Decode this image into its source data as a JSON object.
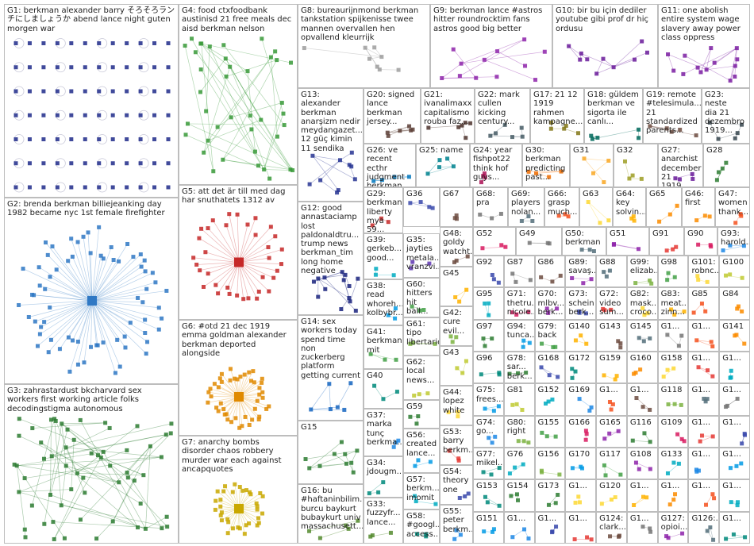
{
  "groups": [
    {
      "id": "G1",
      "label": "G1: berkman alexander barry そろそろラン\nチにしましょうか abend lance night guten\nmorgen war",
      "color": "#1f2a8a"
    },
    {
      "id": "G2",
      "label": "G2: brenda berkman billiejeanking day\n1982 became nyc 1st female firefighter",
      "color": "#2f78c4"
    },
    {
      "id": "G3",
      "label": "G3: zahrastardust bkcharvard sex\nworkers first working article folks\ndecodingstigma autonomous",
      "color": "#2e7d32"
    },
    {
      "id": "G4",
      "label": "G4: food ctxfoodbank\naustinisd 21 free meals dec\naisd berkman nelson",
      "color": "#3a9a3a"
    },
    {
      "id": "G5",
      "label": "G5: att det är till med dag\nhar snuthatets 1312 av",
      "color": "#c62828"
    },
    {
      "id": "G6",
      "label": "G6: #otd 21 dec 1919\nemma goldman alexander\nberkman deported\nalongside",
      "color": "#e08a00"
    },
    {
      "id": "G7",
      "label": "G7: anarchy bombs\ndisorder chaos robbery\nmurder war each against\nancapquotes",
      "color": "#c9a800"
    },
    {
      "id": "G8",
      "label": "G8: bureaurijnmond berkman\ntankstation spijkenisse twee\nmannen overvallen hen\nopvallend kleurrijk",
      "color": "#9e9e9e"
    },
    {
      "id": "G9",
      "label": "G9: berkman lance #astros\nhitter roundrocktim fans\nastros good big better",
      "color": "#8e24aa"
    },
    {
      "id": "G10",
      "label": "G10: bir bu için dediler\nyoutube gibi prof dr hiç\nordusu",
      "color": "#6a1b9a"
    },
    {
      "id": "G11",
      "label": "G11: one abolish\nentire system wage\nslavery away power\nclass oppress",
      "color": "#7b1fa2"
    },
    {
      "id": "G12",
      "label": "G12: good\nannastaciamp\nlost\npaldonaldtru...\ntrump news\nberkman_tim\nlong home\nnegative",
      "color": "#1a237e"
    },
    {
      "id": "G13",
      "label": "G13: alexander\nberkman\nanarşizm nedir\nmeydangazet...\n12 güç kimin\n11 sendika",
      "color": "#283593"
    },
    {
      "id": "G14",
      "label": "G14: sex\nworkers today\nspend time non\nzuckerberg\nplatform\ngetting current",
      "color": "#1565c0"
    },
    {
      "id": "G15",
      "label": "G15",
      "color": "#2e7d32"
    },
    {
      "id": "G16",
      "label": "G16: bu\n#haftaninbilim...\nburcu baykurt\nbubaykurt univ\nmassachusett...",
      "color": "#558b2f"
    },
    {
      "id": "G17",
      "label": "G17: 21 12\n1919\nrahmen\nkampagne...",
      "color": "#827717"
    },
    {
      "id": "G18",
      "label": "G18: güldem\nberkman ve\nsigorta ile\ncanlı...",
      "color": "#00695c"
    },
    {
      "id": "G19",
      "label": "G19: remote\n#telesimula...\n21\nstandardized\nparents...",
      "color": "#6d4c41"
    },
    {
      "id": "G20",
      "label": "G20: signed\nlance\nberkman\njersey...",
      "color": "#5d4037"
    },
    {
      "id": "G21",
      "label": "G21:\nivanalimaxx\ncapitalismo\nrouba faz...",
      "color": "#4e342e"
    },
    {
      "id": "G22",
      "label": "G22: mark\ncullen\nkicking\ncentury...",
      "color": "#455a64"
    },
    {
      "id": "G23",
      "label": "G23: neste\ndia 21\ndezembro\n1919...",
      "color": "#37474f"
    },
    {
      "id": "G24",
      "label": "G24: year\nfishpot22\nthink hof\nguys...",
      "color": "#ad1457"
    },
    {
      "id": "G25",
      "label": "G25: name",
      "color": "#00838f"
    },
    {
      "id": "G26",
      "label": "G26: ve\nrecent ecthr\njudgment\nberkman...",
      "color": "#0277bd"
    },
    {
      "id": "G27",
      "label": "G27:\nanarchist\ndecember\n21 1919...",
      "color": "#6a1b9a"
    },
    {
      "id": "G28",
      "label": "G28",
      "color": "#2e7d32"
    },
    {
      "id": "G29",
      "label": "G29:\nberkman\nliberty\nmya 59...",
      "color": "#c62828"
    },
    {
      "id": "G30",
      "label": "G30:\nberkman\npredicting\npast...",
      "color": "#ef6c00"
    },
    {
      "id": "G31",
      "label": "G31",
      "color": "#f9a825"
    },
    {
      "id": "G32",
      "label": "G32",
      "color": "#9e9d24"
    },
    {
      "id": "G33",
      "label": "G33:\nfuzzyfr...\nlance...",
      "color": "#558b2f"
    },
    {
      "id": "G34",
      "label": "G34:\njdougm...",
      "color": "#00897b"
    },
    {
      "id": "G35",
      "label": "G35:\njayties\nmetala...\nvranzvi...",
      "color": "#5e35b1"
    },
    {
      "id": "G36",
      "label": "G36",
      "color": "#3949ab"
    },
    {
      "id": "G37",
      "label": "G37:\nmarka\ntunç\nberkma...",
      "color": "#1e88e5"
    },
    {
      "id": "G38",
      "label": "G38:\nread\nwhoreh...\nkolbybr...",
      "color": "#039be5"
    },
    {
      "id": "G39",
      "label": "G39:\ngerkeb...\ngood...",
      "color": "#00acc1"
    },
    {
      "id": "G40",
      "label": "G40",
      "color": "#00897b"
    },
    {
      "id": "G41",
      "label": "G41:\nberkman\nmit",
      "color": "#43a047"
    },
    {
      "id": "G42",
      "label": "G42:\ncure\nevil...",
      "color": "#7cb342"
    },
    {
      "id": "G43",
      "label": "G43",
      "color": "#c0ca33"
    },
    {
      "id": "G44",
      "label": "G44:\nlopez\nwhite",
      "color": "#fdd835"
    },
    {
      "id": "G45",
      "label": "G45",
      "color": "#ffb300"
    },
    {
      "id": "G46",
      "label": "G46:\nfirst",
      "color": "#fb8c00"
    },
    {
      "id": "G47",
      "label": "G47:\nwomen\nthank...",
      "color": "#f4511e"
    },
    {
      "id": "G48",
      "label": "G48:\ngoldy\nwatcht...",
      "color": "#6d4c41"
    },
    {
      "id": "G49",
      "label": "G49",
      "color": "#757575"
    },
    {
      "id": "G50",
      "label": "G50:\nberkman",
      "color": "#546e7a"
    },
    {
      "id": "G51",
      "label": "G51",
      "color": "#8e24aa"
    },
    {
      "id": "G52",
      "label": "G52",
      "color": "#d81b60"
    },
    {
      "id": "G53",
      "label": "G53:\nbarry\nberkm...",
      "color": "#e53935"
    },
    {
      "id": "G54",
      "label": "G54:\ntheory\none",
      "color": "#3949ab"
    },
    {
      "id": "G55",
      "label": "G55:\npeter\nberkm...",
      "color": "#1e88e5"
    },
    {
      "id": "G56",
      "label": "G56:\ncreated\nlance...",
      "color": "#039be5"
    },
    {
      "id": "G57",
      "label": "G57:\nberkm...\nimomit",
      "color": "#00acc1"
    },
    {
      "id": "G58",
      "label": "G58:\n#googl...\naccess...",
      "color": "#00897b"
    },
    {
      "id": "G59",
      "label": "G59",
      "color": "#2e7d32"
    },
    {
      "id": "G60",
      "label": "G60:\nhitters\nhit ball...",
      "color": "#43a047"
    },
    {
      "id": "G61",
      "label": "G61:\ntipo\nlibertario",
      "color": "#7cb342"
    },
    {
      "id": "G62",
      "label": "G62:\nlocal\nnews...",
      "color": "#c0ca33"
    },
    {
      "id": "G63",
      "label": "G63",
      "color": "#fdd835"
    },
    {
      "id": "G64",
      "label": "G64:\nkey\nsolvin...",
      "color": "#ffb300"
    },
    {
      "id": "G65",
      "label": "G65",
      "color": "#fb8c00"
    },
    {
      "id": "G66",
      "label": "G66:\ngrasp\nmuch...",
      "color": "#f4511e"
    },
    {
      "id": "G67",
      "label": "G67",
      "color": "#6d4c41"
    },
    {
      "id": "G68",
      "label": "G68:\npra",
      "color": "#757575"
    },
    {
      "id": "G69",
      "label": "G69:\nplayers\nnolan...",
      "color": "#546e7a"
    },
    {
      "id": "G70",
      "label": "G70:\nmlbv...\nberk...",
      "color": "#8e24aa"
    },
    {
      "id": "G71",
      "label": "G71:\nthetru...\nnicole...",
      "color": "#d81b60"
    },
    {
      "id": "G72",
      "label": "G72:\nvideo\nsum...",
      "color": "#e53935"
    },
    {
      "id": "G73",
      "label": "G73:\nschein\nberk...",
      "color": "#3949ab"
    },
    {
      "id": "G74",
      "label": "G74:\ngo...",
      "color": "#1e88e5"
    },
    {
      "id": "G75",
      "label": "G75:\nfrees...",
      "color": "#039be5"
    },
    {
      "id": "G76",
      "label": "G76",
      "color": "#00acc1"
    },
    {
      "id": "G77",
      "label": "G77:\nmikel...",
      "color": "#00897b"
    },
    {
      "id": "G78",
      "label": "G78:\nsar...\nberk...",
      "color": "#2e7d32"
    },
    {
      "id": "G79",
      "label": "G79:\nback",
      "color": "#43a047"
    },
    {
      "id": "G80",
      "label": "G80:\nright",
      "color": "#7cb342"
    },
    {
      "id": "G81",
      "label": "G81",
      "color": "#c0ca33"
    },
    {
      "id": "G82",
      "label": "G82:\nmask...\ncroco...",
      "color": "#fdd835"
    },
    {
      "id": "G83",
      "label": "G83:\nmeat...\nzinn...",
      "color": "#ffb300"
    },
    {
      "id": "G84",
      "label": "G84",
      "color": "#fb8c00"
    },
    {
      "id": "G85",
      "label": "G85",
      "color": "#f4511e"
    },
    {
      "id": "G86",
      "label": "G86",
      "color": "#6d4c41"
    },
    {
      "id": "G87",
      "label": "G87",
      "color": "#757575"
    },
    {
      "id": "G88",
      "label": "G88",
      "color": "#546e7a"
    },
    {
      "id": "G89",
      "label": "G89:\nsavaş...",
      "color": "#8e24aa"
    },
    {
      "id": "G90",
      "label": "G90",
      "color": "#d81b60"
    },
    {
      "id": "G91",
      "label": "G91",
      "color": "#e53935"
    },
    {
      "id": "G92",
      "label": "G92",
      "color": "#3949ab"
    },
    {
      "id": "G93",
      "label": "G93:\nharold...",
      "color": "#1e88e5"
    },
    {
      "id": "G94",
      "label": "G94:\ntunca...",
      "color": "#039be5"
    },
    {
      "id": "G95",
      "label": "G95",
      "color": "#00acc1"
    },
    {
      "id": "G96",
      "label": "G96",
      "color": "#00897b"
    },
    {
      "id": "G97",
      "label": "G97",
      "color": "#2e7d32"
    },
    {
      "id": "G98",
      "label": "G98",
      "color": "#43a047"
    },
    {
      "id": "G99",
      "label": "G99:\nelizab...",
      "color": "#7cb342"
    },
    {
      "id": "G100",
      "label": "G100",
      "color": "#c0ca33"
    },
    {
      "id": "G101",
      "label": "G101:\nrobnc...",
      "color": "#fdd835"
    },
    {
      "id": "G102",
      "label": "G1...",
      "color": "#ffb300"
    },
    {
      "id": "G103",
      "label": "G1...",
      "color": "#fb8c00"
    },
    {
      "id": "G104",
      "label": "G1...",
      "color": "#f4511e"
    },
    {
      "id": "G105",
      "label": "G1...",
      "color": "#6d4c41"
    },
    {
      "id": "G106",
      "label": "G1...",
      "color": "#757575"
    },
    {
      "id": "G107",
      "label": "G1...",
      "color": "#546e7a"
    },
    {
      "id": "G108",
      "label": "G108",
      "color": "#8e24aa"
    },
    {
      "id": "G109",
      "label": "G109",
      "color": "#d81b60"
    },
    {
      "id": "G110",
      "label": "G1...",
      "color": "#e53935"
    },
    {
      "id": "G111",
      "label": "G1...",
      "color": "#3949ab"
    },
    {
      "id": "G112",
      "label": "G1...",
      "color": "#1e88e5"
    },
    {
      "id": "G113",
      "label": "G1...",
      "color": "#039be5"
    },
    {
      "id": "G114",
      "label": "G1...",
      "color": "#00acc1"
    },
    {
      "id": "G115",
      "label": "G1...",
      "color": "#00897b"
    },
    {
      "id": "G116",
      "label": "G116",
      "color": "#2e7d32"
    },
    {
      "id": "G117",
      "label": "G117",
      "color": "#43a047"
    },
    {
      "id": "G118",
      "label": "G118",
      "color": "#7cb342"
    },
    {
      "id": "G119",
      "label": "G119",
      "color": "#c0ca33"
    },
    {
      "id": "G120",
      "label": "G120",
      "color": "#fdd835"
    },
    {
      "id": "G121",
      "label": "G1...",
      "color": "#ffb300"
    },
    {
      "id": "G122",
      "label": "G1...",
      "color": "#fb8c00"
    },
    {
      "id": "G123",
      "label": "G1...",
      "color": "#f4511e"
    },
    {
      "id": "G124",
      "label": "G124:\nclark...",
      "color": "#6d4c41"
    },
    {
      "id": "G125",
      "label": "G1...",
      "color": "#757575"
    },
    {
      "id": "G126",
      "label": "G126:...",
      "color": "#546e7a"
    },
    {
      "id": "G127",
      "label": "G127:\nopioi...",
      "color": "#8e24aa"
    },
    {
      "id": "G128",
      "label": "G1...",
      "color": "#d81b60"
    },
    {
      "id": "G129",
      "label": "G1...",
      "color": "#e53935"
    },
    {
      "id": "G130",
      "label": "G1...",
      "color": "#3949ab"
    },
    {
      "id": "G131",
      "label": "G1...",
      "color": "#1e88e5"
    },
    {
      "id": "G132",
      "label": "G1...",
      "color": "#039be5"
    },
    {
      "id": "G133",
      "label": "G133",
      "color": "#00acc1"
    },
    {
      "id": "G134",
      "label": "G1...",
      "color": "#00897b"
    },
    {
      "id": "G135",
      "label": "G1...",
      "color": "#2e7d32"
    },
    {
      "id": "G136",
      "label": "G1...",
      "color": "#43a047"
    },
    {
      "id": "G137",
      "label": "G1...",
      "color": "#7cb342"
    },
    {
      "id": "G138",
      "label": "G1...",
      "color": "#c0ca33"
    },
    {
      "id": "G139",
      "label": "G1...",
      "color": "#fdd835"
    },
    {
      "id": "G140",
      "label": "G140",
      "color": "#ffb300"
    },
    {
      "id": "G141",
      "label": "G141",
      "color": "#fb8c00"
    },
    {
      "id": "G142",
      "label": "G1...",
      "color": "#f4511e"
    },
    {
      "id": "G143",
      "label": "G143",
      "color": "#6d4c41"
    },
    {
      "id": "G144",
      "label": "G1...",
      "color": "#757575"
    },
    {
      "id": "G145",
      "label": "G145",
      "color": "#546e7a"
    },
    {
      "id": "G146",
      "label": "G1...",
      "color": "#8e24aa"
    },
    {
      "id": "G147",
      "label": "G1...",
      "color": "#d81b60"
    },
    {
      "id": "G148",
      "label": "G1...",
      "color": "#e53935"
    },
    {
      "id": "G149",
      "label": "G1...",
      "color": "#3949ab"
    },
    {
      "id": "G150",
      "label": "G1...",
      "color": "#1e88e5"
    },
    {
      "id": "G151",
      "label": "G151",
      "color": "#039be5"
    },
    {
      "id": "G152",
      "label": "G152",
      "color": "#00acc1"
    },
    {
      "id": "G153",
      "label": "G153",
      "color": "#00897b"
    },
    {
      "id": "G154",
      "label": "G154",
      "color": "#2e7d32"
    },
    {
      "id": "G155",
      "label": "G155",
      "color": "#43a047"
    },
    {
      "id": "G156",
      "label": "G156",
      "color": "#7cb342"
    },
    {
      "id": "G157",
      "label": "G1...",
      "color": "#c0ca33"
    },
    {
      "id": "G158",
      "label": "G158",
      "color": "#fdd835"
    },
    {
      "id": "G159",
      "label": "G159",
      "color": "#ffb300"
    },
    {
      "id": "G160",
      "label": "G160",
      "color": "#fb8c00"
    },
    {
      "id": "G161",
      "label": "G1...",
      "color": "#f4511e"
    },
    {
      "id": "G162",
      "label": "G1...",
      "color": "#6d4c41"
    },
    {
      "id": "G163",
      "label": "G1...",
      "color": "#757575"
    },
    {
      "id": "G164",
      "label": "G1...",
      "color": "#546e7a"
    },
    {
      "id": "G165",
      "label": "G165",
      "color": "#8e24aa"
    },
    {
      "id": "G166",
      "label": "G166",
      "color": "#d81b60"
    },
    {
      "id": "G167",
      "label": "G1...",
      "color": "#e53935"
    },
    {
      "id": "G168",
      "label": "G168",
      "color": "#3949ab"
    },
    {
      "id": "G169",
      "label": "G169",
      "color": "#1e88e5"
    },
    {
      "id": "G170",
      "label": "G170",
      "color": "#039be5"
    },
    {
      "id": "G171",
      "label": "G1...",
      "color": "#00acc1"
    },
    {
      "id": "G172",
      "label": "G172",
      "color": "#00897b"
    },
    {
      "id": "G173",
      "label": "G173",
      "color": "#2e7d32"
    }
  ],
  "small_words": [
    "more",
    "ana...",
    "capi...",
    "full",
    "em...",
    "gra...",
    "opioi...",
    "city",
    "trila...",
    "barr...",
    "tunç...",
    "arti...",
    "barr...",
    "dig...",
    "sele...",
    "trail...",
    "cura...",
    "vida...",
    "berk...",
    "bre...",
    "deg...",
    "year...",
    "chal...",
    "mere",
    "pow...",
    "gov...",
    "me...",
    "next...",
    "cau...",
    "berk...",
    "alice",
    "wro...",
    "covi...",
    "peo...",
    "sun...",
    "barr...",
    "sev...",
    "ber..."
  ]
}
